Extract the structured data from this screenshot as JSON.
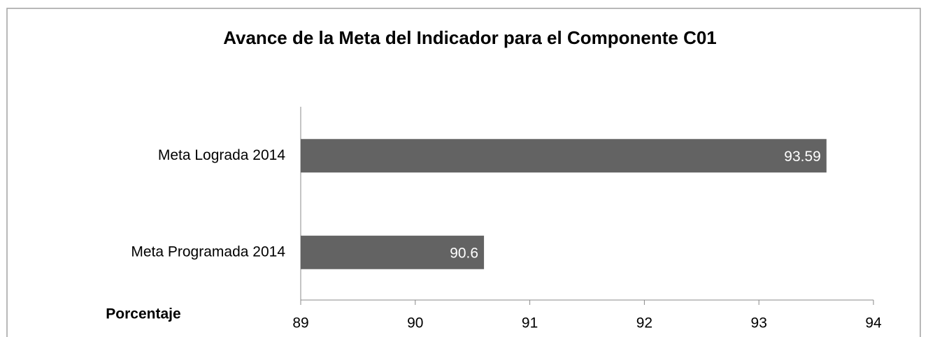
{
  "chart_data": {
    "type": "barh",
    "title": "Avance de la Meta del Indicador para el Componente C01",
    "x_label": "Porcentaje",
    "categories": [
      "Meta Lograda 2014",
      "Meta Programada 2014"
    ],
    "values": [
      93.59,
      90.6
    ],
    "color": "#636363",
    "xlim": [
      89,
      94
    ],
    "xticks": [
      89,
      90,
      91,
      92,
      93,
      94
    ],
    "grid": false
  }
}
